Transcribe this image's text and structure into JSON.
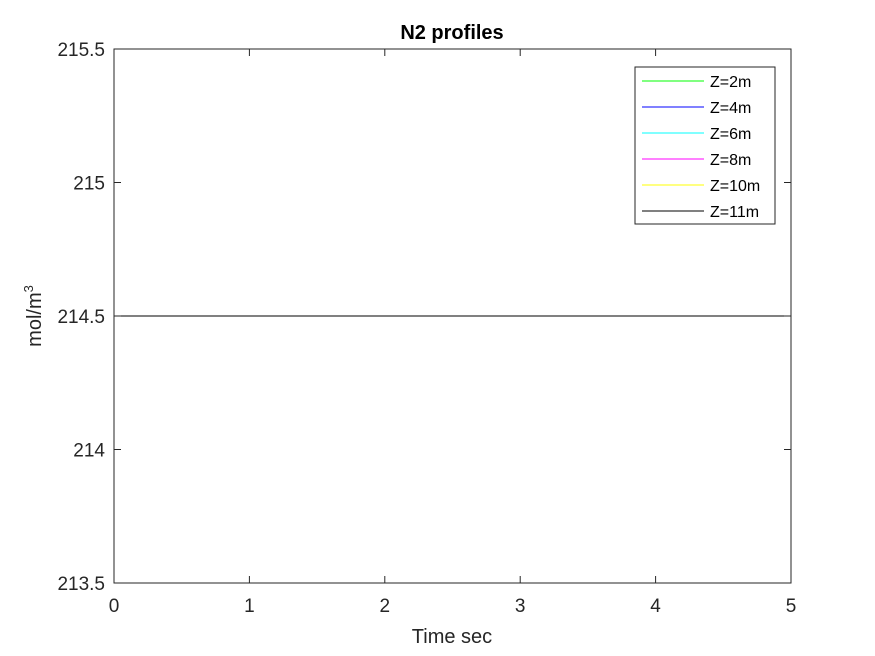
{
  "chart_data": {
    "type": "line",
    "title": "N2 profiles",
    "xlabel": "Time sec",
    "ylabel_base": "mol/m",
    "ylabel_sup": "3",
    "xlim": [
      0,
      5
    ],
    "ylim": [
      213.5,
      215.5
    ],
    "xticks": [
      "0",
      "1",
      "2",
      "3",
      "4",
      "5"
    ],
    "yticks": [
      "213.5",
      "214",
      "214.5",
      "215",
      "215.5"
    ],
    "grid": false,
    "legend_position": "top-right",
    "x": [
      0,
      5
    ],
    "series": [
      {
        "name": "Z=2m",
        "color": "#00ff00",
        "values": [
          214.5,
          214.5
        ]
      },
      {
        "name": "Z=4m",
        "color": "#0000ff",
        "values": [
          214.5,
          214.5
        ]
      },
      {
        "name": "Z=6m",
        "color": "#00ffff",
        "values": [
          214.5,
          214.5
        ]
      },
      {
        "name": "Z=8m",
        "color": "#ff00ff",
        "values": [
          214.5,
          214.5
        ]
      },
      {
        "name": "Z=10m",
        "color": "#ffff00",
        "values": [
          214.5,
          214.5
        ]
      },
      {
        "name": "Z=11m",
        "color": "#000000",
        "values": [
          214.5,
          214.5
        ]
      }
    ]
  }
}
